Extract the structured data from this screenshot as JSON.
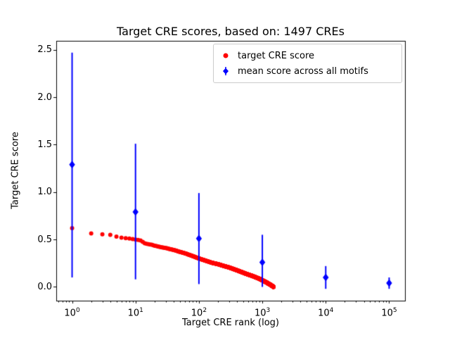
{
  "chart_data": {
    "type": "scatter",
    "title": "Target CRE scores, based on: 1497 CREs",
    "xlabel": "Target CRE rank (log)",
    "ylabel": "Target CRE score",
    "x_scale": "log",
    "xlim_log10": [
      -0.25,
      5.25
    ],
    "ylim": [
      -0.145,
      2.595
    ],
    "x_ticks_exponents": [
      0,
      1,
      2,
      3,
      4,
      5
    ],
    "y_ticks": [
      0.0,
      0.5,
      1.0,
      1.5,
      2.0,
      2.5
    ],
    "grid": false,
    "legend_position": "upper right",
    "series": [
      {
        "name": "target CRE score",
        "marker": "circle",
        "color": "#ff0000",
        "n_points": 1497,
        "sample_points": [
          [
            1,
            0.62
          ],
          [
            2,
            0.565
          ],
          [
            3,
            0.555
          ],
          [
            4,
            0.55
          ],
          [
            5,
            0.53
          ],
          [
            6,
            0.52
          ],
          [
            8,
            0.51
          ],
          [
            10,
            0.5
          ],
          [
            12,
            0.49
          ],
          [
            14,
            0.46
          ],
          [
            16,
            0.45
          ],
          [
            18,
            0.445
          ],
          [
            20,
            0.435
          ],
          [
            25,
            0.42
          ],
          [
            30,
            0.41
          ],
          [
            40,
            0.39
          ],
          [
            50,
            0.37
          ],
          [
            60,
            0.355
          ],
          [
            80,
            0.325
          ],
          [
            100,
            0.3
          ],
          [
            130,
            0.275
          ],
          [
            160,
            0.255
          ],
          [
            200,
            0.24
          ],
          [
            250,
            0.22
          ],
          [
            300,
            0.205
          ],
          [
            400,
            0.175
          ],
          [
            500,
            0.15
          ],
          [
            600,
            0.13
          ],
          [
            700,
            0.115
          ],
          [
            800,
            0.1
          ],
          [
            900,
            0.085
          ],
          [
            1000,
            0.07
          ],
          [
            1100,
            0.055
          ],
          [
            1200,
            0.042
          ],
          [
            1300,
            0.028
          ],
          [
            1400,
            0.015
          ],
          [
            1450,
            0.008
          ],
          [
            1497,
            0.0
          ]
        ]
      },
      {
        "name": "mean score across all motifs",
        "marker": "diamond",
        "color": "#0000ff",
        "points": [
          {
            "x": 1,
            "y": 1.29,
            "y_lo": 0.1,
            "y_hi": 2.47
          },
          {
            "x": 10,
            "y": 0.79,
            "y_lo": 0.08,
            "y_hi": 1.51
          },
          {
            "x": 100,
            "y": 0.51,
            "y_lo": 0.03,
            "y_hi": 0.99
          },
          {
            "x": 1000,
            "y": 0.26,
            "y_lo": 0.0,
            "y_hi": 0.55
          },
          {
            "x": 10000,
            "y": 0.1,
            "y_lo": -0.02,
            "y_hi": 0.22
          },
          {
            "x": 100000,
            "y": 0.04,
            "y_lo": -0.02,
            "y_hi": 0.1
          }
        ]
      }
    ]
  }
}
